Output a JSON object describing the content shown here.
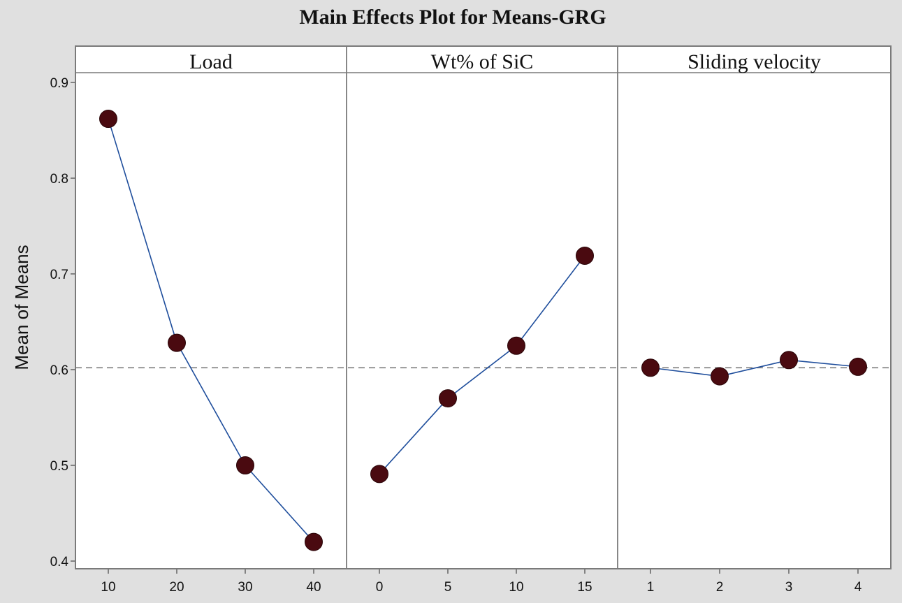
{
  "chart_data": {
    "type": "line",
    "title": "Main Effects Plot for Means-GRG",
    "ylabel": "Mean of Means",
    "ylim": [
      0.4,
      0.9
    ],
    "yticks": [
      "0.4",
      "0.5",
      "0.6",
      "0.7",
      "0.8",
      "0.9"
    ],
    "reference_line": 0.602,
    "grid": false,
    "colors": {
      "line": "#1f4e9c",
      "marker": "#4a0a10",
      "reference": "#888888",
      "background": "#e0e0e0",
      "plot_bg": "#ffffff",
      "frame": "#7a7a7a"
    },
    "panels": [
      {
        "label": "Load",
        "categories": [
          "10",
          "20",
          "30",
          "40"
        ],
        "values": [
          0.862,
          0.628,
          0.5,
          0.42
        ]
      },
      {
        "label": "Wt% of SiC",
        "categories": [
          "0",
          "5",
          "10",
          "15"
        ],
        "values": [
          0.491,
          0.57,
          0.625,
          0.719
        ]
      },
      {
        "label": "Sliding velocity",
        "categories": [
          "1",
          "2",
          "3",
          "4"
        ],
        "values": [
          0.602,
          0.593,
          0.61,
          0.603
        ]
      }
    ]
  }
}
